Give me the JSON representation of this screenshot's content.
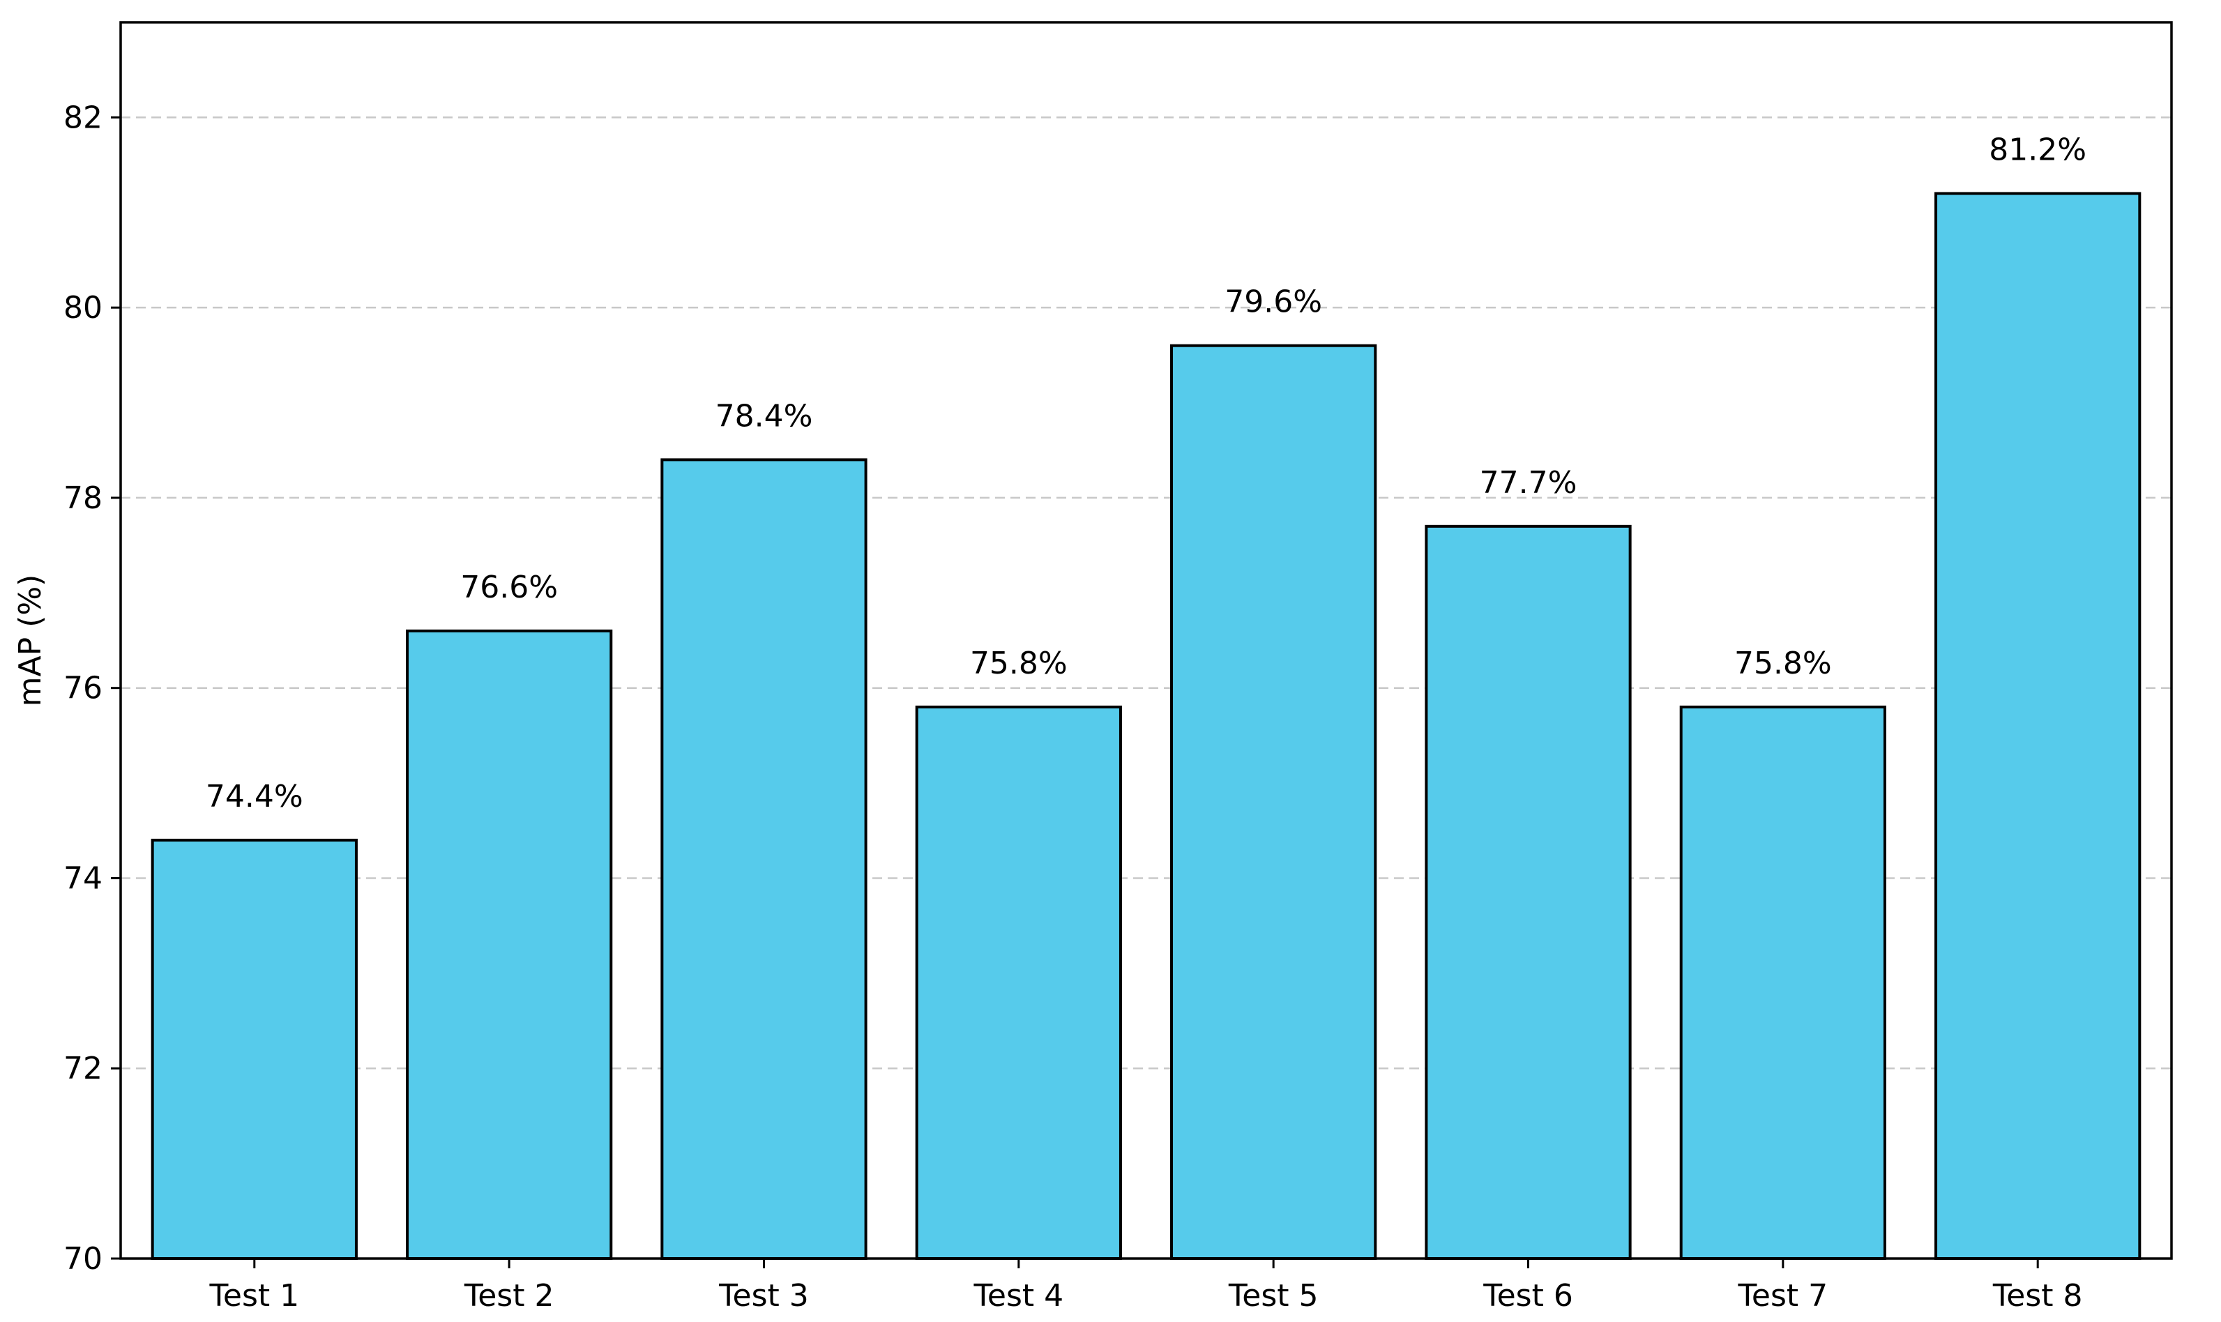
{
  "chart_data": {
    "type": "bar",
    "title": "",
    "xlabel": "",
    "ylabel": "mAP (%)",
    "categories": [
      "Test 1",
      "Test 2",
      "Test 3",
      "Test 4",
      "Test 5",
      "Test 6",
      "Test 7",
      "Test 8"
    ],
    "values": [
      74.4,
      76.6,
      78.4,
      75.8,
      79.6,
      77.7,
      75.8,
      81.2
    ],
    "value_labels": [
      "74.4%",
      "76.6%",
      "78.4%",
      "75.8%",
      "79.6%",
      "77.7%",
      "75.8%",
      "81.2%"
    ],
    "ylim": [
      70,
      83
    ],
    "yticks": [
      70,
      72,
      74,
      76,
      78,
      80,
      82
    ],
    "ytick_labels": [
      "70",
      "72",
      "74",
      "76",
      "78",
      "80",
      "82"
    ],
    "grid": true,
    "grid_axis": "y",
    "bar_color": "#56cbeb",
    "edge_color": "#000000"
  }
}
